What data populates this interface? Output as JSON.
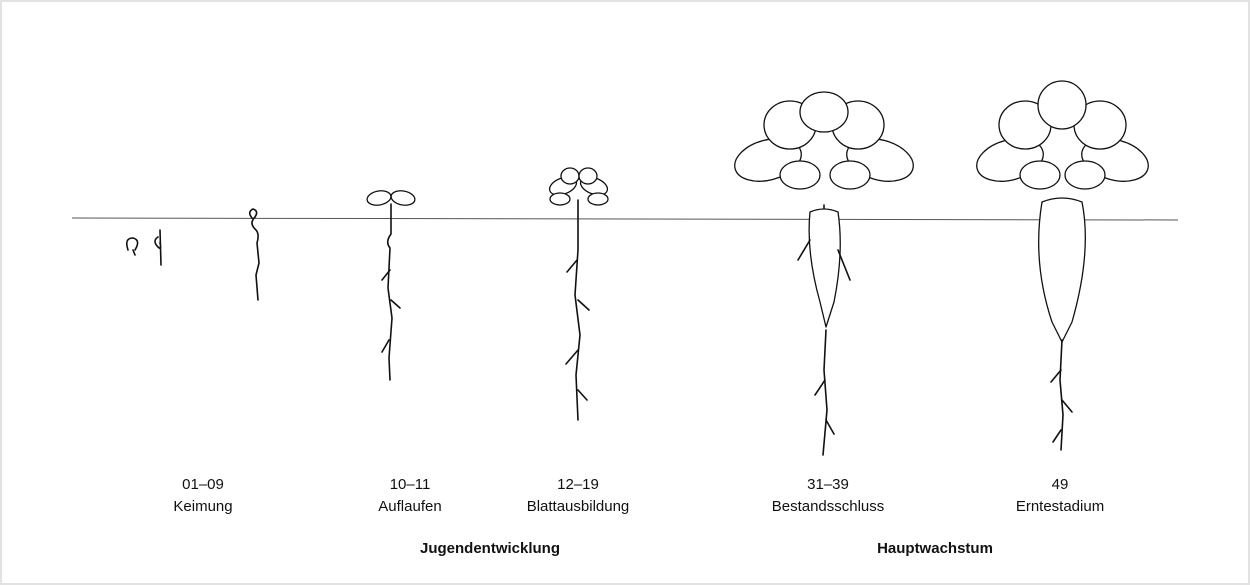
{
  "stages": [
    {
      "code": "01–09",
      "name": "Keimung"
    },
    {
      "code": "10–11",
      "name": "Auflaufen"
    },
    {
      "code": "12–19",
      "name": "Blattausbildung"
    },
    {
      "code": "31–39",
      "name": "Bestandsschluss"
    },
    {
      "code": "49",
      "name": "Erntestadium"
    }
  ],
  "phases": [
    "Jugendentwicklung",
    "Hauptwachstum"
  ]
}
